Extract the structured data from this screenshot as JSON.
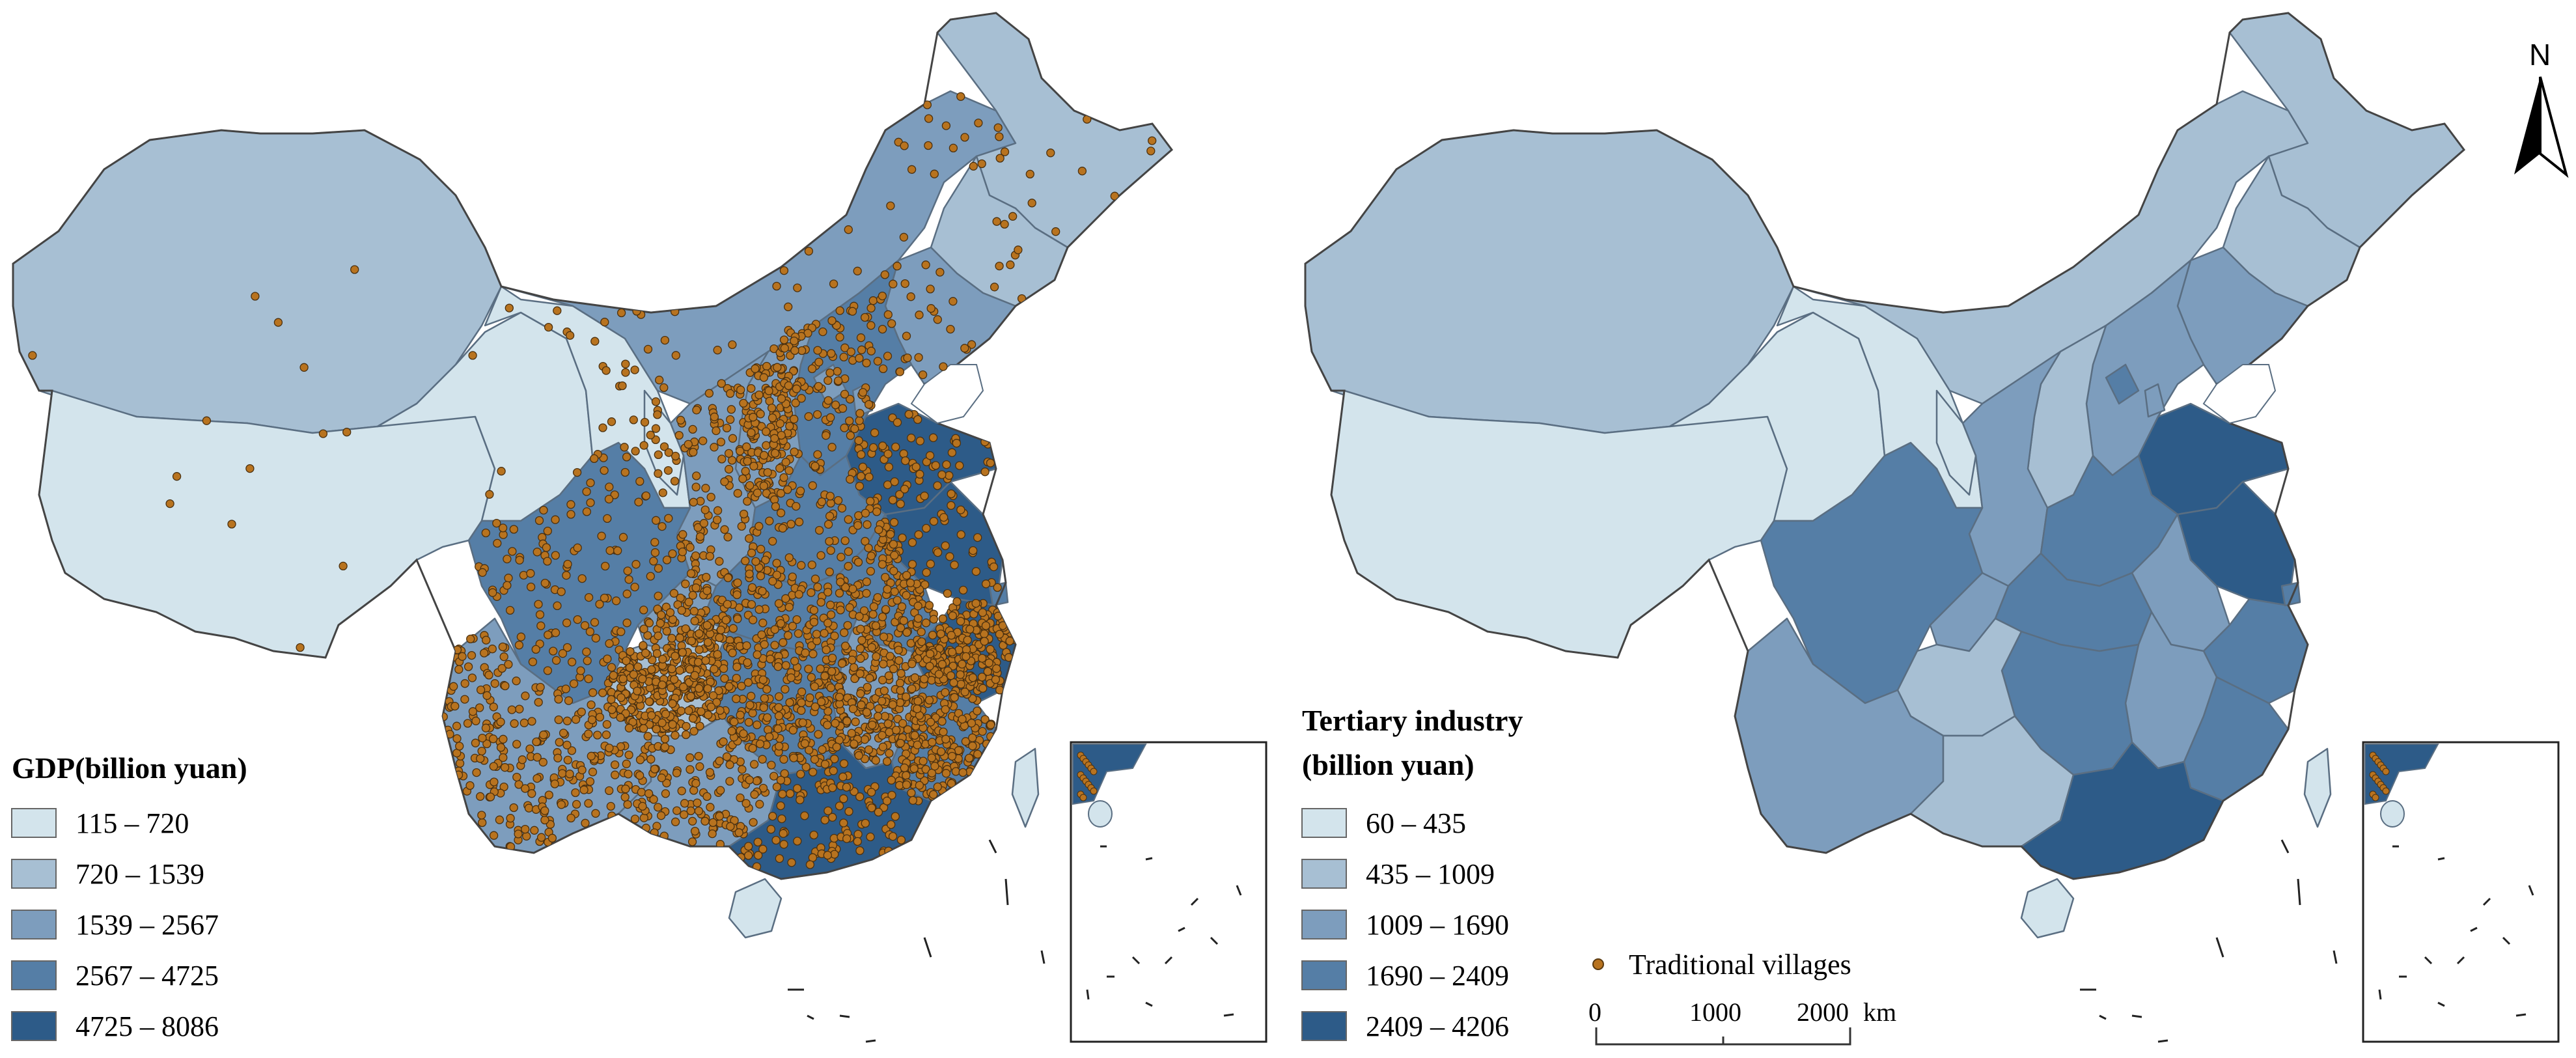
{
  "left_map": {
    "legend_title": "GDP(billion yuan)",
    "classes": [
      {
        "label": "115 – 720",
        "color": "#d3e4ec"
      },
      {
        "label": "720 – 1539",
        "color": "#a7bfd3"
      },
      {
        "label": "1539 – 2567",
        "color": "#7d9dbd"
      },
      {
        "label": "2567 – 4725",
        "color": "#557ea6"
      },
      {
        "label": "4725 – 8086",
        "color": "#2d5b88"
      }
    ]
  },
  "right_map": {
    "legend_title_line1": "Tertiary industry",
    "legend_title_line2": "(billion yuan)",
    "classes": [
      {
        "label": "60 – 435",
        "color": "#d3e4ec"
      },
      {
        "label": "435 – 1009",
        "color": "#a7bfd3"
      },
      {
        "label": "1009 – 1690",
        "color": "#7d9dbd"
      },
      {
        "label": "1690 – 2409",
        "color": "#557ea6"
      },
      {
        "label": "2409 – 4206",
        "color": "#2d5b88"
      }
    ]
  },
  "villages_legend": {
    "label": "Traditional villages",
    "color": "#b8731f"
  },
  "scale_bar": {
    "ticks": [
      "0",
      "1000",
      "2000"
    ],
    "unit": "km"
  },
  "north_arrow": {
    "label": "N"
  }
}
